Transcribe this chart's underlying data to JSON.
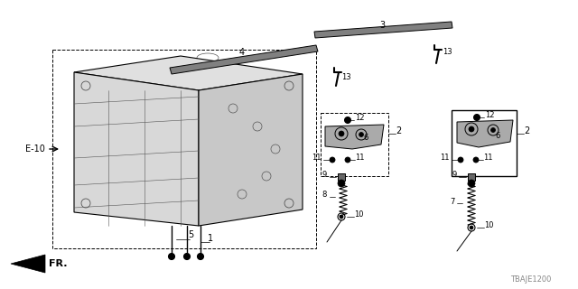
{
  "bg_color": "#ffffff",
  "watermark": "TBAJE1200",
  "arrow_label": "FR.",
  "e10_label": "E-10",
  "black": "#000000",
  "gray": "#555555",
  "lightgray": "#cccccc",
  "midgray": "#999999"
}
